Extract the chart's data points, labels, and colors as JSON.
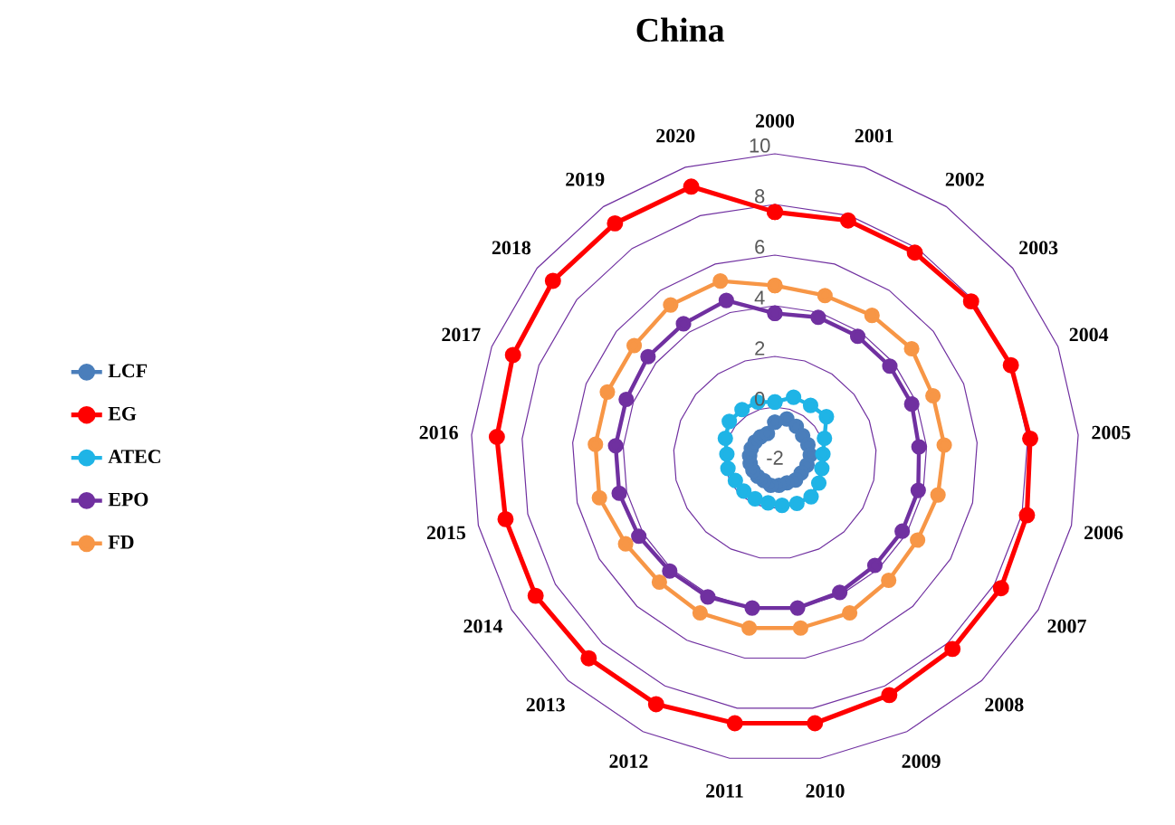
{
  "chart_data": {
    "type": "radar",
    "title": "China",
    "categories": [
      "2000",
      "2001",
      "2002",
      "2003",
      "2004",
      "2005",
      "2006",
      "2007",
      "2008",
      "2009",
      "2010",
      "2011",
      "2012",
      "2013",
      "2014",
      "2015",
      "2016",
      "2017",
      "2018",
      "2019",
      "2020"
    ],
    "ylim": [
      -2,
      10
    ],
    "yticks": [
      -2,
      0,
      2,
      4,
      6,
      8,
      10
    ],
    "grid": true,
    "legend": "left",
    "marker": "circle",
    "series": [
      {
        "name": "LCF",
        "color": "#4a7ebb",
        "values": [
          -0.6,
          -0.4,
          -0.5,
          -0.6,
          -0.6,
          -0.6,
          -0.7,
          -0.8,
          -0.8,
          -0.9,
          -0.9,
          -0.9,
          -1.0,
          -1.0,
          -1.0,
          -1.0,
          -1.0,
          -1.0,
          -1.0,
          -1.0,
          -1.0
        ]
      },
      {
        "name": "EG",
        "color": "#ff0000",
        "values": [
          7.7,
          7.8,
          7.8,
          7.9,
          8.0,
          8.1,
          8.2,
          8.3,
          8.3,
          8.4,
          8.6,
          8.6,
          8.8,
          8.8,
          8.9,
          8.9,
          9.0,
          9.1,
          9.2,
          9.2,
          9.2
        ]
      },
      {
        "name": "ATEC",
        "color": "#1fb4e6",
        "values": [
          0.2,
          0.5,
          0.5,
          0.6,
          0.1,
          -0.1,
          -0.1,
          0.0,
          0.1,
          0.0,
          -0.1,
          -0.2,
          -0.2,
          -0.2,
          -0.2,
          -0.1,
          -0.1,
          0.1,
          0.3,
          0.3,
          0.3
        ]
      },
      {
        "name": "EPO",
        "color": "#7030a0",
        "values": [
          3.7,
          3.8,
          3.8,
          3.8,
          3.8,
          3.7,
          3.8,
          3.8,
          3.8,
          3.9,
          4.0,
          4.0,
          4.1,
          4.1,
          4.2,
          4.3,
          4.3,
          4.3,
          4.4,
          4.4,
          4.5
        ]
      },
      {
        "name": "FD",
        "color": "#f79646",
        "values": [
          4.8,
          4.7,
          4.8,
          4.9,
          4.7,
          4.7,
          4.6,
          4.5,
          4.6,
          4.8,
          4.8,
          4.8,
          4.8,
          4.7,
          4.8,
          5.1,
          5.1,
          5.1,
          5.1,
          5.3,
          5.3
        ]
      }
    ]
  }
}
